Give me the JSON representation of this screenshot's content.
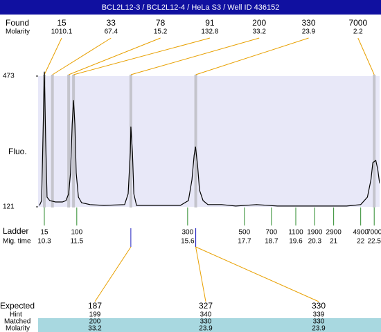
{
  "chart_data": {
    "type": "line",
    "title": "BCL2L12-3 / BCL2L12-4 / HeLa S3 / Well ID 436152",
    "y_label": "Fluo.",
    "ylim": [
      121,
      473
    ],
    "yticks": [
      121,
      473
    ],
    "xlim": [
      10.07,
      22.7
    ],
    "found": {
      "label": "Found",
      "molarity_label": "Molarity",
      "peaks": [
        {
          "size": 15,
          "molarity": 1010.1,
          "time": 10.3
        },
        {
          "size": 33,
          "molarity": 67.4,
          "time": 10.6
        },
        {
          "size": 78,
          "molarity": 15.2,
          "time": 11.2
        },
        {
          "size": 91,
          "molarity": 132.8,
          "time": 11.38
        },
        {
          "size": 200,
          "molarity": 33.2,
          "time": 13.5
        },
        {
          "size": 330,
          "molarity": 23.9,
          "time": 15.9
        },
        {
          "size": 7000,
          "molarity": 2.2,
          "time": 22.5
        }
      ]
    },
    "ladder": {
      "label": "Ladder",
      "time_label": "Mig. time",
      "sizes": [
        15,
        100,
        300,
        500,
        700,
        1100,
        1900,
        2900,
        4900,
        7000
      ],
      "times": [
        10.3,
        11.5,
        15.6,
        17.7,
        18.7,
        19.6,
        20.3,
        21,
        22,
        22.5
      ]
    },
    "expected": {
      "label": "Expected",
      "hint_label": "Hint",
      "matched_label": "Matched",
      "molarity_label": "Molarity",
      "columns": [
        {
          "expected": 187,
          "hint": 199,
          "matched": 200,
          "molarity": 33.2,
          "time": 13.5
        },
        {
          "expected": 327,
          "hint": 340,
          "matched": 330,
          "molarity": 23.9,
          "time": 15.9
        },
        {
          "expected": 330,
          "hint": 339,
          "matched": 330,
          "molarity": 23.9,
          "time": 15.9
        }
      ]
    },
    "trace": {
      "color": "#000000",
      "x": [
        10.12,
        10.2,
        10.25,
        10.3,
        10.35,
        10.4,
        10.5,
        10.71,
        10.97,
        11.1,
        11.2,
        11.27,
        11.33,
        11.38,
        11.43,
        11.48,
        11.56,
        11.68,
        11.99,
        12.5,
        13.27,
        13.4,
        13.48,
        13.5,
        13.56,
        13.61,
        13.71,
        15.33,
        15.63,
        15.76,
        15.84,
        15.89,
        15.97,
        16.04,
        16.17,
        16.35,
        16.86,
        17.38,
        18.15,
        18.92,
        20.2,
        21.48,
        22.0,
        22.25,
        22.38,
        22.45,
        22.56,
        22.63,
        22.7
      ],
      "y": [
        124.7,
        137.8,
        305,
        485,
        305,
        147,
        137.8,
        134,
        134,
        137.8,
        156,
        212,
        343,
        408,
        343,
        212,
        147,
        132,
        127,
        124.7,
        127,
        156,
        268,
        337,
        268,
        156,
        124.7,
        124.7,
        137.8,
        194,
        259,
        283,
        231,
        166,
        137.8,
        127,
        127,
        123,
        127,
        123,
        123,
        123,
        127,
        147,
        194,
        240,
        246,
        222,
        184
      ]
    }
  }
}
